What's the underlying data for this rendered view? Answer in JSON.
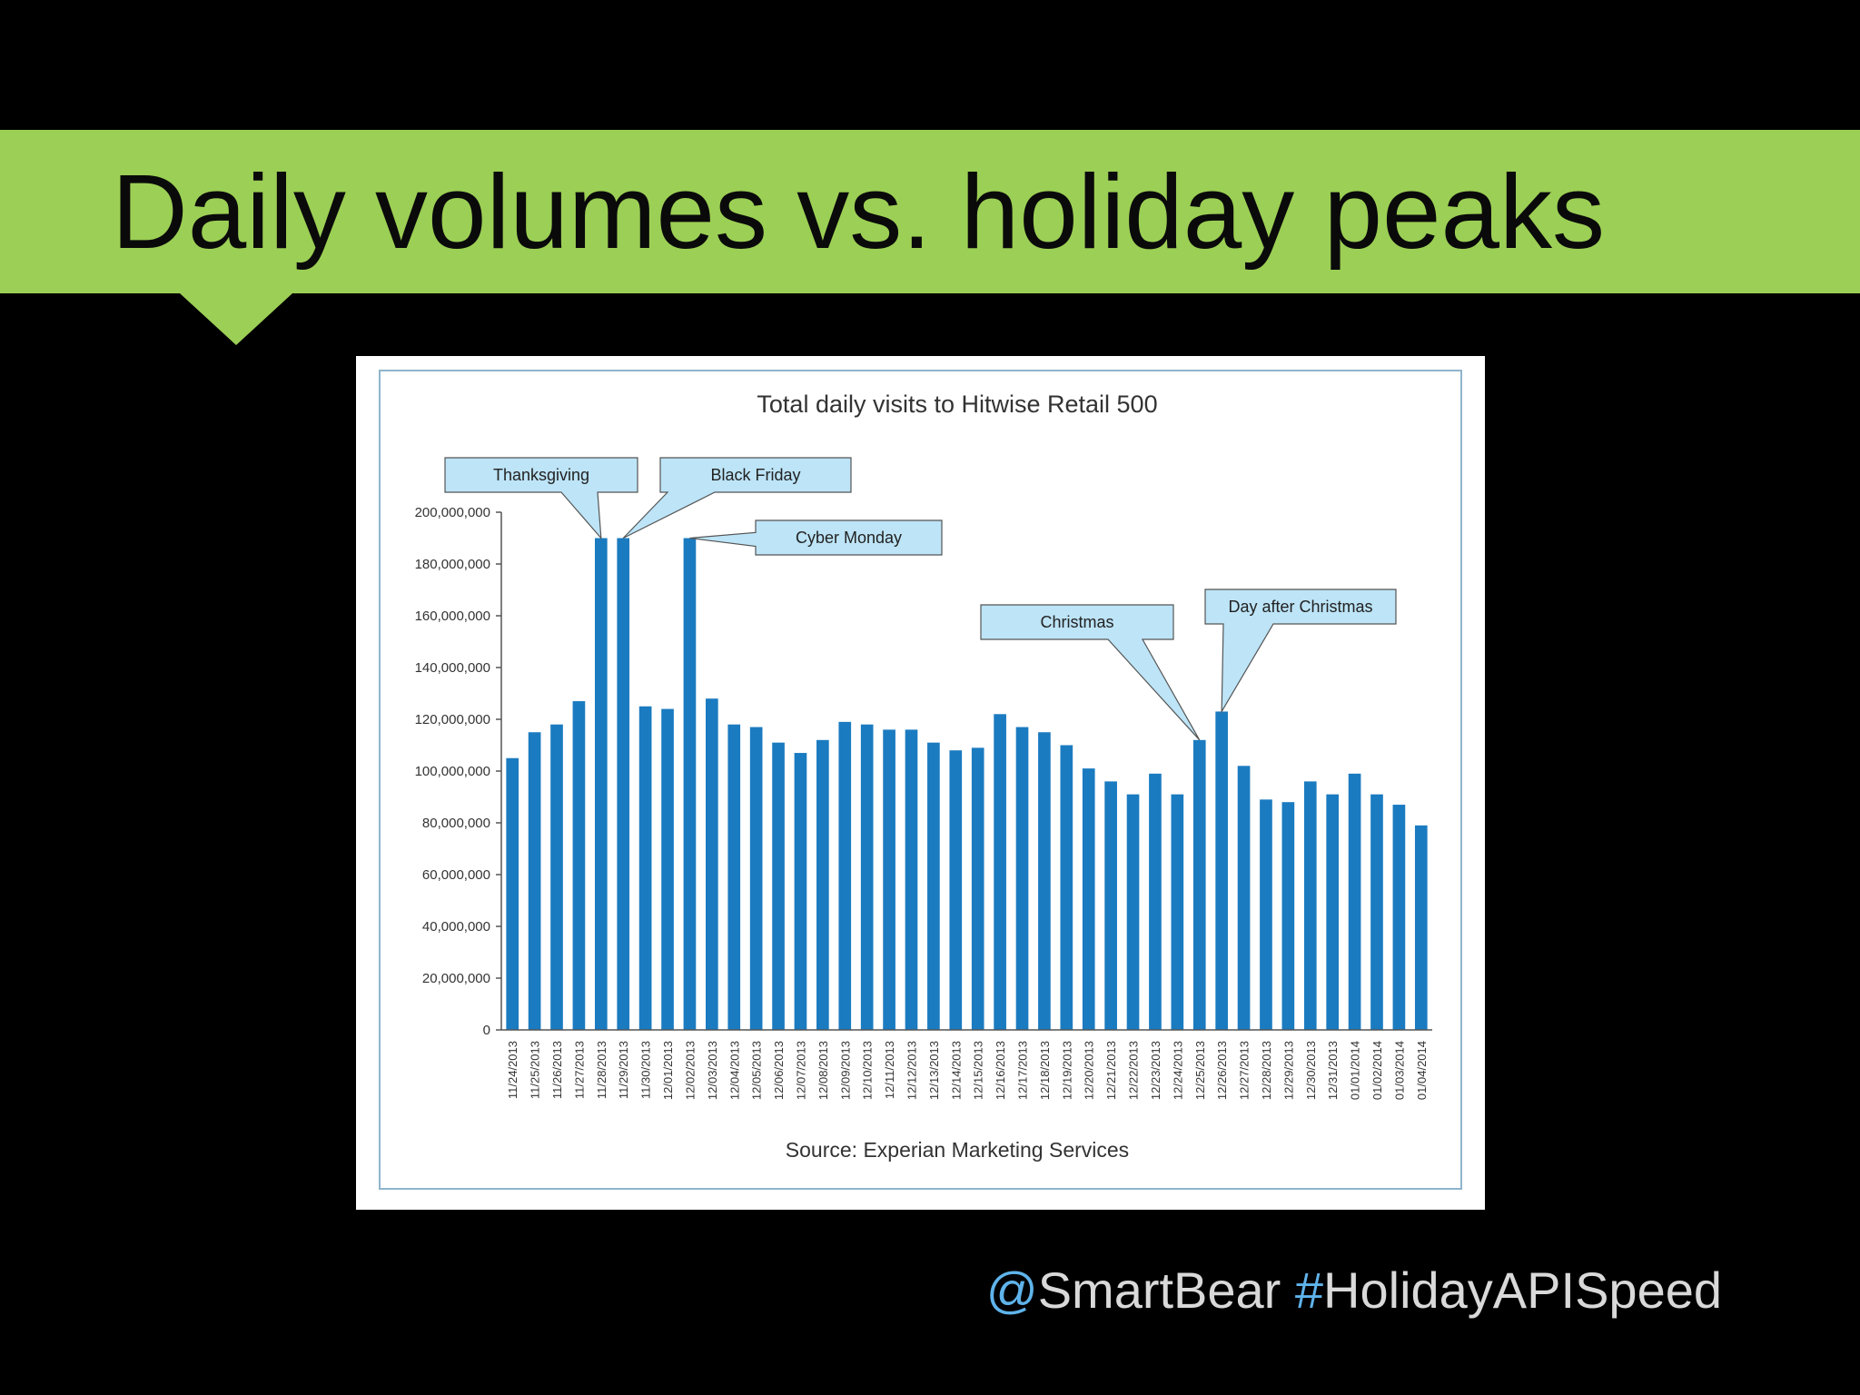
{
  "slide": {
    "title": "Daily volumes vs. holiday peaks",
    "handle_symbol": "@",
    "handle_text": "SmartBear",
    "hashtag_symbol": "#",
    "hashtag_text": "HolidayAPISpeed"
  },
  "colors": {
    "banner": "#9ccf55",
    "background": "#000000",
    "bar": "#1b7bc0",
    "callout_fill": "#bde4f7",
    "frame": "#8fb4cc",
    "footer_accent": "#5fb3ea"
  },
  "chart_data": {
    "type": "bar",
    "title": "Total daily visits to Hitwise Retail 500",
    "source": "Source: Experian Marketing Services",
    "ylim": [
      0,
      200000000
    ],
    "yticks": [
      "0",
      "20,000,000",
      "40,000,000",
      "60,000,000",
      "80,000,000",
      "100,000,000",
      "120,000,000",
      "140,000,000",
      "160,000,000",
      "180,000,000",
      "200,000,000"
    ],
    "categories": [
      "11/24/2013",
      "11/25/2013",
      "11/26/2013",
      "11/27/2013",
      "11/28/2013",
      "11/29/2013",
      "11/30/2013",
      "12/01/2013",
      "12/02/2013",
      "12/03/2013",
      "12/04/2013",
      "12/05/2013",
      "12/06/2013",
      "12/07/2013",
      "12/08/2013",
      "12/09/2013",
      "12/10/2013",
      "12/11/2013",
      "12/12/2013",
      "12/13/2013",
      "12/14/2013",
      "12/15/2013",
      "12/16/2013",
      "12/17/2013",
      "12/18/2013",
      "12/19/2013",
      "12/20/2013",
      "12/21/2013",
      "12/22/2013",
      "12/23/2013",
      "12/24/2013",
      "12/25/2013",
      "12/26/2013",
      "12/27/2013",
      "12/28/2013",
      "12/29/2013",
      "12/30/2013",
      "12/31/2013",
      "01/01/2014",
      "01/02/2014",
      "01/03/2014",
      "01/04/2014"
    ],
    "values": [
      105000000,
      115000000,
      118000000,
      127000000,
      190000000,
      190000000,
      125000000,
      124000000,
      190000000,
      128000000,
      118000000,
      117000000,
      111000000,
      107000000,
      112000000,
      119000000,
      118000000,
      116000000,
      116000000,
      111000000,
      108000000,
      109000000,
      122000000,
      117000000,
      115000000,
      110000000,
      101000000,
      96000000,
      91000000,
      99000000,
      91000000,
      112000000,
      123000000,
      102000000,
      89000000,
      88000000,
      96000000,
      91000000,
      99000000,
      91000000,
      87000000,
      79000000
    ],
    "annotations": [
      {
        "label": "Thanksgiving",
        "category": "11/28/2013"
      },
      {
        "label": "Black Friday",
        "category": "11/29/2013"
      },
      {
        "label": "Cyber Monday",
        "category": "12/02/2013"
      },
      {
        "label": "Christmas",
        "category": "12/25/2013"
      },
      {
        "label": "Day after Christmas",
        "category": "12/26/2013"
      }
    ]
  }
}
